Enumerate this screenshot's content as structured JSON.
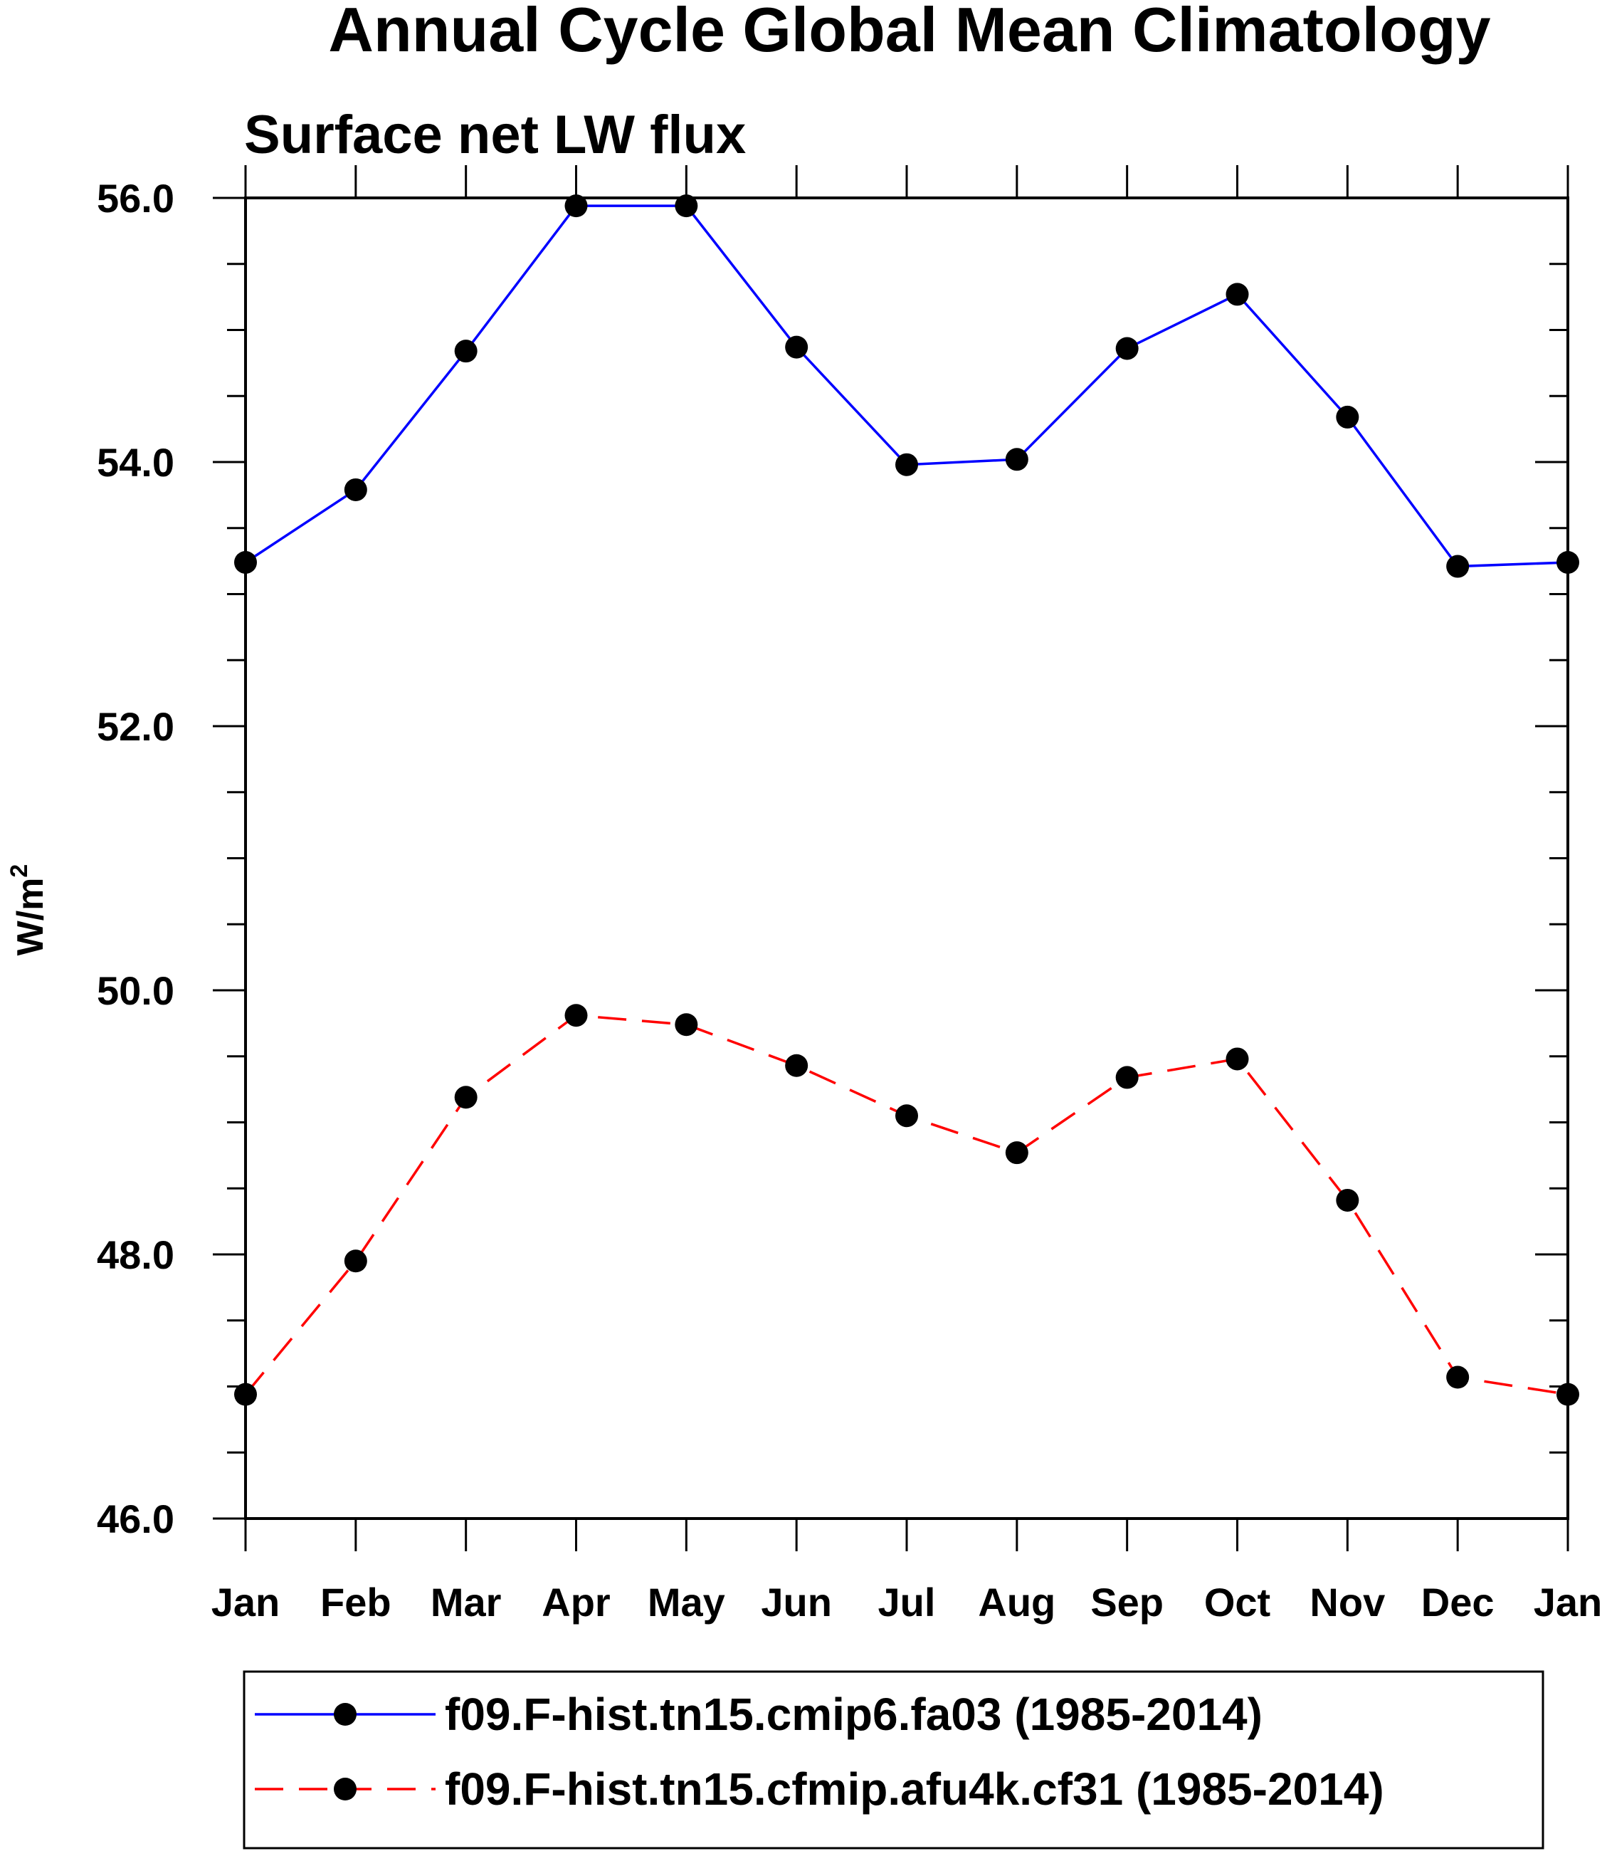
{
  "chart_data": {
    "type": "line",
    "title": "Annual Cycle Global Mean Climatology",
    "subtitle": "Surface net LW flux",
    "xlabel": "",
    "ylabel": "W/m",
    "ylabel_superscript": "2",
    "categories": [
      "Jan",
      "Feb",
      "Mar",
      "Apr",
      "May",
      "Jun",
      "Jul",
      "Aug",
      "Sep",
      "Oct",
      "Nov",
      "Dec",
      "Jan"
    ],
    "ylim": [
      46.0,
      56.0
    ],
    "yticks": [
      "46.0",
      "48.0",
      "50.0",
      "52.0",
      "54.0",
      "56.0"
    ],
    "grid": false,
    "legend_position": "bottom",
    "series": [
      {
        "name": "f09.F-hist.tn15.cmip6.fa03 (1985-2014)",
        "color": "#0000ff",
        "line_style": "solid",
        "marker": "filled-circle",
        "values": [
          53.24,
          53.79,
          54.84,
          55.94,
          55.94,
          54.87,
          53.98,
          54.02,
          54.86,
          55.27,
          54.34,
          53.21,
          53.24
        ]
      },
      {
        "name": "f09.F-hist.tn15.cfmip.afu4k.cf31 (1985-2014)",
        "color": "#ff0000",
        "line_style": "dashed",
        "marker": "filled-circle",
        "values": [
          46.94,
          47.95,
          49.19,
          49.81,
          49.74,
          49.43,
          49.05,
          48.77,
          49.34,
          49.48,
          48.41,
          47.07,
          46.94
        ]
      }
    ]
  }
}
